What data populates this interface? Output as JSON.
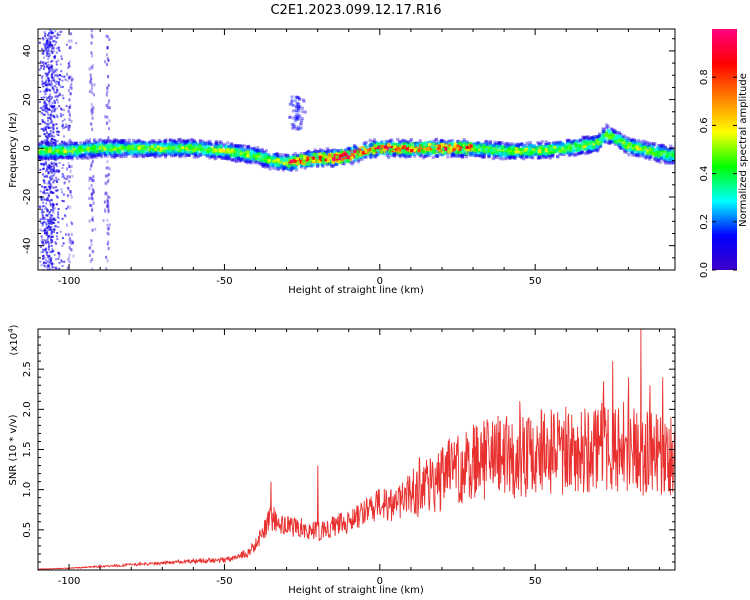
{
  "title": "C2E1.2023.099.12.17.R16",
  "chart_data": [
    {
      "type": "heatmap",
      "xlabel": "Height of straight line (km)",
      "ylabel": "Frequency (Hz)",
      "xlim": [
        -110,
        95
      ],
      "ylim": [
        -50,
        49
      ],
      "xticks": [
        -100,
        -50,
        0,
        50
      ],
      "yticks": [
        -40,
        -20,
        0,
        20,
        40
      ],
      "colorbar": {
        "label": "Normalized spectral amplitude",
        "range": [
          0,
          1
        ],
        "ticks": [
          0.0,
          0.2,
          0.4,
          0.6,
          0.8
        ],
        "colormap": [
          "#3c00c8",
          "#0000ff",
          "#00ffff",
          "#00ff00",
          "#ffff00",
          "#ff8000",
          "#ff0000",
          "#ff0080"
        ]
      },
      "ridge": {
        "x": [
          -108,
          -100,
          -90,
          -80,
          -70,
          -60,
          -50,
          -45,
          -40,
          -35,
          -30,
          -25,
          -20,
          -15,
          -10,
          -5,
          0,
          10,
          20,
          30,
          40,
          50,
          60,
          70,
          73,
          80,
          90,
          95
        ],
        "y": [
          -1,
          -1,
          0,
          0,
          0,
          0,
          -1,
          -2,
          -3,
          -5,
          -6,
          -5,
          -4,
          -4,
          -3,
          -1,
          0,
          0,
          0,
          0,
          -1,
          -1,
          0,
          2,
          6,
          1,
          -2,
          -3
        ]
      }
    },
    {
      "type": "line",
      "xlabel": "Height of straight line (km)",
      "ylabel": "SNR (10 * v/v)",
      "y_multiplier": "(x10",
      "y_multiplier_exp": "4",
      "y_multiplier_close": ")",
      "xlim": [
        -110,
        95
      ],
      "ylim": [
        0,
        3.0
      ],
      "xticks": [
        -100,
        -50,
        0,
        50
      ],
      "yticks": [
        0.5,
        1.0,
        1.5,
        2.0,
        2.5
      ],
      "series": [
        {
          "color": "#e8312f",
          "envelope": {
            "x": [
              -110,
              -100,
              -80,
              -60,
              -50,
              -42,
              -38,
              -35,
              -30,
              -20,
              -10,
              -5,
              0,
              5,
              10,
              15,
              25,
              35,
              45,
              55,
              65,
              75,
              85,
              95
            ],
            "y": [
              0.01,
              0.02,
              0.06,
              0.1,
              0.12,
              0.2,
              0.4,
              0.6,
              0.5,
              0.45,
              0.55,
              0.65,
              0.75,
              0.75,
              0.9,
              1.0,
              1.15,
              1.3,
              1.3,
              1.35,
              1.4,
              1.45,
              1.35,
              1.3
            ]
          },
          "spikes": [
            {
              "x": -35,
              "y": 1.1
            },
            {
              "x": -20,
              "y": 1.3
            },
            {
              "x": 20,
              "y": 1.2
            },
            {
              "x": 45,
              "y": 2.1
            },
            {
              "x": 52,
              "y": 2.0
            },
            {
              "x": 72,
              "y": 2.35
            },
            {
              "x": 75,
              "y": 2.6
            },
            {
              "x": 80,
              "y": 2.4
            },
            {
              "x": 84,
              "y": 3.0
            },
            {
              "x": 87,
              "y": 2.3
            },
            {
              "x": 91,
              "y": 2.4
            }
          ]
        }
      ]
    }
  ]
}
